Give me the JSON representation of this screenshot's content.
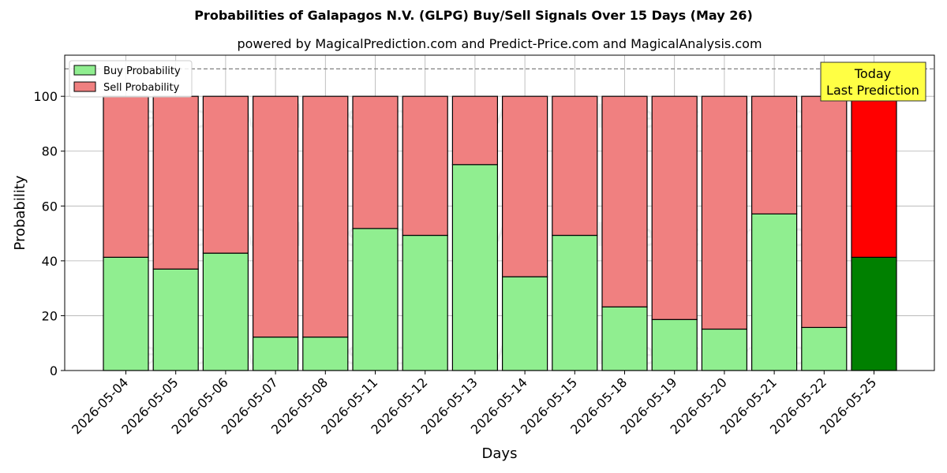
{
  "title": "Probabilities of Galapagos N.V. (GLPG) Buy/Sell Signals Over 15 Days (May 26)",
  "subtitle": "powered by MagicalPrediction.com and Predict-Price.com and MagicalAnalysis.com",
  "watermarks": [
    "MagicalAnalysis.com",
    "MagicalPrediction.com"
  ],
  "annotation": {
    "line1": "Today",
    "line2": "Last Prediction"
  },
  "colors": {
    "buy": "#90ee90",
    "sell": "#f08080",
    "buy_today": "#008000",
    "sell_today": "#ff0000",
    "annotation_bg": "#ffff44"
  },
  "chart_data": {
    "type": "bar",
    "stacked": true,
    "categories": [
      "2026-05-04",
      "2026-05-05",
      "2026-05-06",
      "2026-05-07",
      "2026-05-08",
      "2026-05-11",
      "2026-05-12",
      "2026-05-13",
      "2026-05-14",
      "2026-05-15",
      "2026-05-18",
      "2026-05-19",
      "2026-05-20",
      "2026-05-21",
      "2026-05-22",
      "2026-05-25"
    ],
    "series": [
      {
        "name": "Buy Probability",
        "values": [
          41.3,
          37.0,
          42.8,
          12.2,
          12.2,
          51.8,
          49.3,
          75.1,
          34.2,
          49.3,
          23.2,
          18.6,
          15.1,
          57.1,
          15.7,
          41.3
        ]
      },
      {
        "name": "Sell Probability",
        "values": [
          58.7,
          63.0,
          57.2,
          87.8,
          87.8,
          48.2,
          50.7,
          24.9,
          65.8,
          50.7,
          76.8,
          81.4,
          84.9,
          42.9,
          84.3,
          58.7
        ]
      }
    ],
    "xlabel": "Days",
    "ylabel": "Probability",
    "ylim": [
      0,
      115
    ],
    "yticks": [
      0,
      20,
      40,
      60,
      80,
      100
    ],
    "reference_line": 110,
    "grid": true,
    "legend_position": "top-left"
  }
}
